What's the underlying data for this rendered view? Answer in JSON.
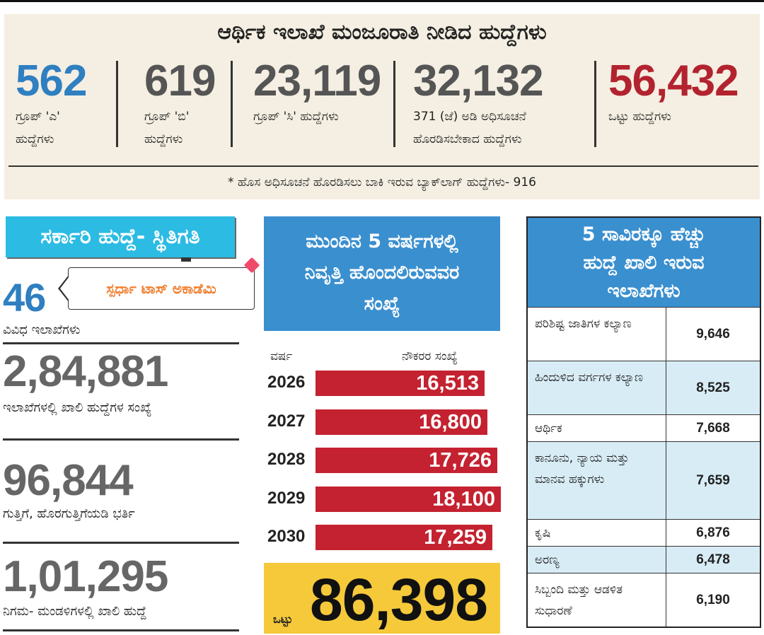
{
  "top": {
    "title": "ಆರ್ಥಿಕ ಇಲಾಖೆ ಮಂಜೂರಾತಿ ನೀಡಿದ ಹುದ್ದೆಗಳು",
    "stats": [
      {
        "value": "562",
        "label1": "ಗ್ರೂಪ್ 'ಎ'",
        "label2": "ಹುದ್ದೆಗಳು",
        "color": "#2f7fc1"
      },
      {
        "value": "619",
        "label1": "ಗ್ರೂಪ್ 'ಬಿ'",
        "label2": "ಹುದ್ದೆಗಳು",
        "color": "#555555"
      },
      {
        "value": "23,119",
        "label1": "ಗ್ರೂಪ್ 'ಸಿ' ಹುದ್ದೆಗಳು",
        "label2": "",
        "color": "#555555"
      },
      {
        "value": "32,132",
        "label1": "371 (ಜೆ) ಅಡಿ ಅಧಿಸೂಚನೆ",
        "label2": "ಹೊರಡಿಸಬೇಕಾದ ಹುದ್ದೆಗಳು",
        "color": "#555555"
      },
      {
        "value": "56,432",
        "label1": "ಒಟ್ಟು ಹುದ್ದೆಗಳು",
        "label2": "",
        "color": "#b3232f"
      }
    ],
    "footnote": "* ಹೊಸ ಅಧಿಸೂಚನೆ ಹೊರಡಿಸಲು ಬಾಕಿ ಇರುವ ಬ್ಯಾಕ್‌ಲಾಗ್ ಹುದ್ದೆಗಳು- 916"
  },
  "left": {
    "title": "ಸರ್ಕಾರಿ ಹುದ್ದೆ- ಸ್ಥಿತಿಗತಿ",
    "callout": "ಸ್ಪರ್ಧಾ ಟಾಸ್ ಅಕಾಡೆಮಿ",
    "items": [
      {
        "value": "46",
        "label": "ವಿವಿಧ ಇಲಾಖೆಗಳು",
        "color": "#2f7fc1"
      },
      {
        "value": "2,84,881",
        "label": "ಇಲಾಖೆಗಳಲ್ಲಿ ಖಾಲಿ ಹುದ್ದೆಗಳ ಸಂಖ್ಯೆ",
        "color": "#666666"
      },
      {
        "value": "96,844",
        "label": "ಗುತ್ತಿಗೆ, ಹೊರಗುತ್ತಿಗೆಯಡಿ ಭರ್ತಿ",
        "color": "#666666"
      },
      {
        "value": "1,01,295",
        "label": "ನಿಗಮ- ಮಂಡಳಿಗಳಲ್ಲಿ ಖಾಲಿ ಹುದ್ದೆ",
        "color": "#666666"
      }
    ]
  },
  "middle": {
    "title_lines": [
      "ಮುಂದಿನ 5 ವರ್ಷಗಳಲ್ಲಿ",
      "ನಿವೃತ್ತಿ ಹೊಂದಲಿರುವವರ",
      "ಸಂಖ್ಯೆ"
    ],
    "col_year": "ವರ್ಷ",
    "col_count": "ನೌಕರರ ಸಂಖ್ಯೆ",
    "total_label": "ಒಟ್ಟು",
    "total_value": "86,398"
  },
  "chart_data": {
    "type": "bar",
    "title": "ಮುಂದಿನ 5 ವರ್ಷಗಳಲ್ಲಿ ನಿವೃತ್ತಿ ಹೊಂದಲಿರುವವರ ಸಂಖ್ಯೆ",
    "xlabel": "ವರ್ಷ",
    "ylabel": "ನೌಕರರ ಸಂಖ್ಯೆ",
    "orientation": "horizontal",
    "categories": [
      "2026",
      "2027",
      "2028",
      "2029",
      "2030"
    ],
    "values": [
      16513,
      16800,
      17726,
      18100,
      17259
    ],
    "value_labels": [
      "16,513",
      "16,800",
      "17,726",
      "18,100",
      "17,259"
    ],
    "xlim": [
      0,
      18100
    ],
    "bar_color": "#c42230"
  },
  "right": {
    "title_lines": [
      "5 ಸಾವಿರಕ್ಕೂ ಹೆಚ್ಚು",
      "ಹುದ್ದೆ ಖಾಲಿ ಇರುವ",
      "ಇಲಾಖೆಗಳು"
    ],
    "rows": [
      {
        "name": "ಪರಿಶಿಷ್ಟ ಜಾತಿಗಳ ಕಲ್ಯಾಣ",
        "value": "9,646",
        "lines": 2,
        "alt": false
      },
      {
        "name": "ಹಿಂದುಳಿದ ವರ್ಗಗಳ ಕಲ್ಯಾಣ",
        "value": "8,525",
        "lines": 2,
        "alt": true
      },
      {
        "name": "ಆರ್ಥಿಕ",
        "value": "7,668",
        "lines": 1,
        "alt": false
      },
      {
        "name": "ಕಾನೂನು, ನ್ಯಾಯ ಮತ್ತು ಮಾನವ ಹಕ್ಕುಗಳು",
        "value": "7,659",
        "lines": 3,
        "alt": true
      },
      {
        "name": "ಕೃಷಿ",
        "value": "6,876",
        "lines": 1,
        "alt": false
      },
      {
        "name": "ಅರಣ್ಯ",
        "value": "6,478",
        "lines": 1,
        "alt": true
      },
      {
        "name": "ಸಿಬ್ಬಂದಿ ಮತ್ತು ಆಡಳಿತ ಸುಧಾರಣೆ",
        "value": "6,190",
        "lines": 2,
        "alt": false
      }
    ]
  }
}
